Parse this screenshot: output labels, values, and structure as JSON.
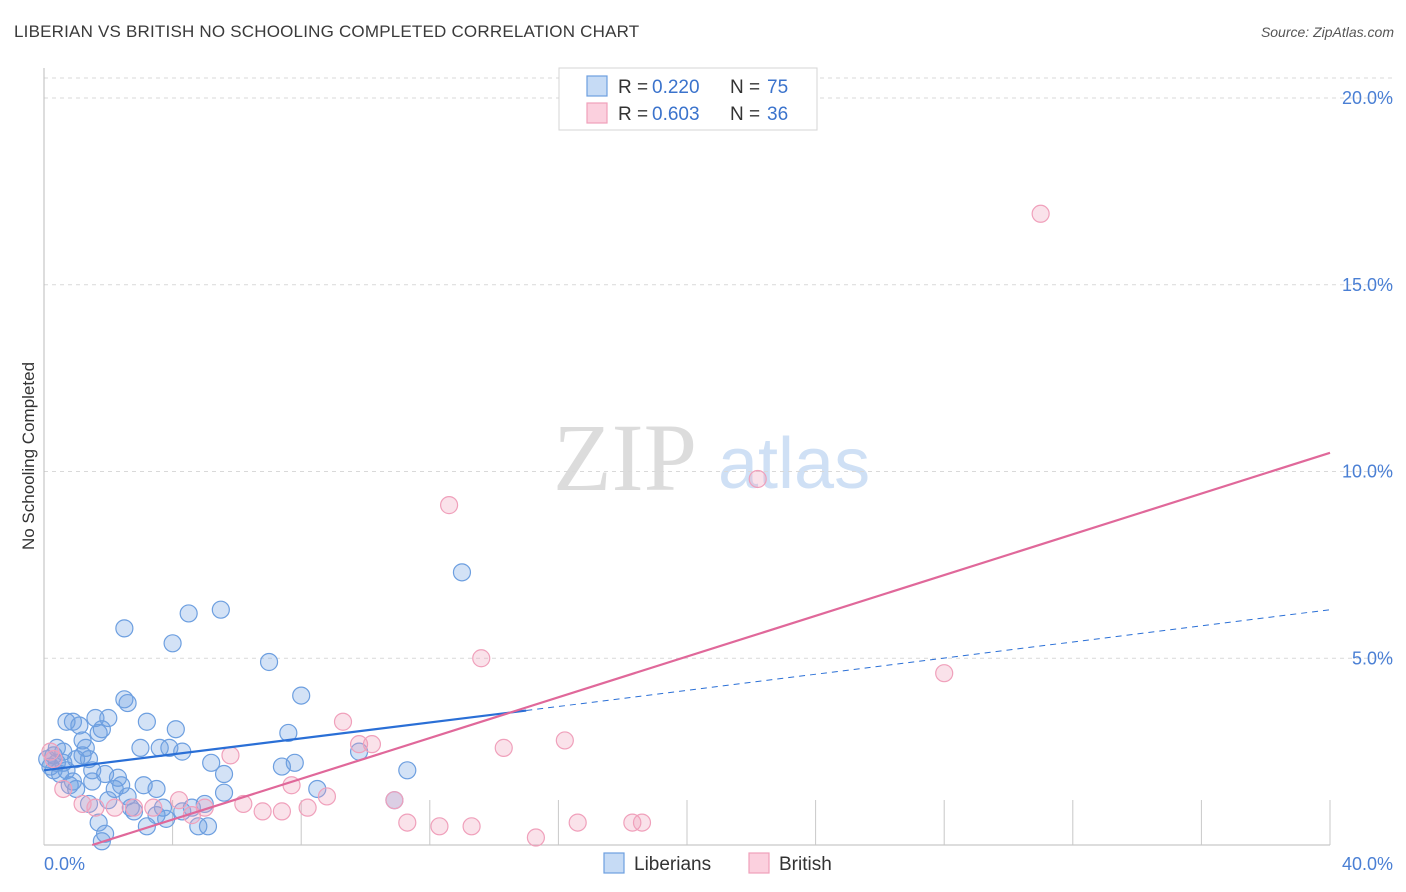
{
  "title": "LIBERIAN VS BRITISH NO SCHOOLING COMPLETED CORRELATION CHART",
  "source": "Source: ZipAtlas.com",
  "watermark": {
    "zip": "ZIP",
    "atlas": "atlas"
  },
  "colors": {
    "liberians": "#6d9fe0",
    "liberians_line": "#2a6fd6",
    "british": "#f0a0bb",
    "british_line": "#e0689a",
    "grid": "#d9d9d9",
    "tick_text": "#4a7fd4"
  },
  "legend": {
    "rows": [
      {
        "r_label": "R = ",
        "r_value": "0.220",
        "n_label": "N = ",
        "n_value": "75"
      },
      {
        "r_label": "R = ",
        "r_value": "0.603",
        "n_label": "N = ",
        "n_value": "36"
      }
    ]
  },
  "bottom_legend": [
    "Liberians",
    "British"
  ],
  "chart_data": {
    "type": "scatter",
    "title": "LIBERIAN VS BRITISH NO SCHOOLING COMPLETED CORRELATION CHART",
    "xlabel": "",
    "ylabel": "No Schooling Completed",
    "xlim": [
      0,
      40
    ],
    "ylim": [
      0,
      20
    ],
    "x_tick_labels": [
      "0.0%",
      "40.0%"
    ],
    "y_ticks": [
      5,
      10,
      15,
      20
    ],
    "y_tick_labels": [
      "5.0%",
      "10.0%",
      "15.0%",
      "20.0%"
    ],
    "grid": true,
    "legend_position": "top-center",
    "series": [
      {
        "name": "Liberians",
        "r": 0.22,
        "n": 75,
        "trend": {
          "x0": 0,
          "y0": 2.0,
          "x1": 15,
          "y1": 3.6,
          "dashed_to_x": 40,
          "dashed_to_y": 6.3
        },
        "points": [
          [
            0.1,
            2.3
          ],
          [
            0.2,
            2.1
          ],
          [
            0.3,
            2.4
          ],
          [
            0.4,
            2.2
          ],
          [
            0.5,
            1.9
          ],
          [
            0.6,
            2.5
          ],
          [
            0.7,
            2.0
          ],
          [
            0.8,
            1.6
          ],
          [
            0.9,
            1.7
          ],
          [
            1.0,
            2.3
          ],
          [
            0.7,
            3.3
          ],
          [
            0.9,
            3.3
          ],
          [
            1.1,
            3.2
          ],
          [
            1.2,
            2.4
          ],
          [
            1.3,
            2.6
          ],
          [
            1.4,
            2.3
          ],
          [
            1.5,
            1.7
          ],
          [
            1.4,
            1.1
          ],
          [
            1.5,
            2.0
          ],
          [
            1.6,
            3.4
          ],
          [
            1.7,
            3.0
          ],
          [
            1.8,
            3.1
          ],
          [
            1.9,
            1.9
          ],
          [
            1.7,
            0.6
          ],
          [
            1.9,
            0.3
          ],
          [
            1.8,
            0.1
          ],
          [
            2.0,
            3.4
          ],
          [
            2.2,
            1.5
          ],
          [
            2.3,
            1.8
          ],
          [
            2.4,
            1.6
          ],
          [
            2.5,
            3.9
          ],
          [
            2.6,
            3.8
          ],
          [
            2.7,
            1.0
          ],
          [
            2.8,
            0.9
          ],
          [
            3.0,
            2.6
          ],
          [
            3.1,
            1.6
          ],
          [
            3.2,
            0.5
          ],
          [
            3.2,
            3.3
          ],
          [
            2.5,
            5.8
          ],
          [
            3.5,
            1.5
          ],
          [
            3.6,
            2.6
          ],
          [
            3.7,
            1.0
          ],
          [
            3.8,
            0.7
          ],
          [
            3.9,
            2.6
          ],
          [
            4.0,
            5.4
          ],
          [
            4.1,
            3.1
          ],
          [
            4.3,
            2.5
          ],
          [
            4.5,
            6.2
          ],
          [
            4.6,
            1.0
          ],
          [
            4.8,
            0.5
          ],
          [
            5.1,
            0.5
          ],
          [
            5.2,
            2.2
          ],
          [
            5.5,
            6.3
          ],
          [
            5.6,
            1.9
          ],
          [
            5.6,
            1.4
          ],
          [
            7.0,
            4.9
          ],
          [
            7.4,
            2.1
          ],
          [
            7.6,
            3.0
          ],
          [
            7.8,
            2.2
          ],
          [
            8.0,
            4.0
          ],
          [
            8.5,
            1.5
          ],
          [
            9.8,
            2.5
          ],
          [
            10.9,
            1.2
          ],
          [
            11.3,
            2.0
          ],
          [
            13.0,
            7.3
          ],
          [
            0.3,
            2.0
          ],
          [
            0.6,
            2.2
          ],
          [
            1.0,
            1.5
          ],
          [
            2.0,
            1.2
          ],
          [
            3.5,
            0.8
          ],
          [
            4.3,
            0.9
          ],
          [
            5.0,
            1.1
          ],
          [
            0.4,
            2.6
          ],
          [
            1.2,
            2.8
          ],
          [
            2.6,
            1.3
          ]
        ]
      },
      {
        "name": "British",
        "r": 0.603,
        "n": 36,
        "trend": {
          "x0": 1.5,
          "y0": 0.0,
          "x1": 40,
          "y1": 10.5
        },
        "points": [
          [
            0.3,
            2.3
          ],
          [
            0.6,
            1.5
          ],
          [
            1.2,
            1.1
          ],
          [
            1.6,
            1.0
          ],
          [
            2.2,
            1.0
          ],
          [
            2.8,
            1.0
          ],
          [
            3.4,
            1.0
          ],
          [
            4.2,
            1.2
          ],
          [
            4.6,
            0.8
          ],
          [
            5.0,
            1.0
          ],
          [
            5.8,
            2.4
          ],
          [
            6.2,
            1.1
          ],
          [
            6.8,
            0.9
          ],
          [
            7.4,
            0.9
          ],
          [
            7.7,
            1.6
          ],
          [
            8.2,
            1.0
          ],
          [
            8.8,
            1.3
          ],
          [
            9.3,
            3.3
          ],
          [
            9.8,
            2.7
          ],
          [
            10.2,
            2.7
          ],
          [
            10.9,
            1.2
          ],
          [
            11.3,
            0.6
          ],
          [
            12.3,
            0.5
          ],
          [
            12.6,
            9.1
          ],
          [
            13.3,
            0.5
          ],
          [
            13.6,
            5.0
          ],
          [
            14.3,
            2.6
          ],
          [
            15.3,
            0.2
          ],
          [
            16.2,
            2.8
          ],
          [
            16.6,
            0.6
          ],
          [
            18.3,
            0.6
          ],
          [
            18.6,
            0.6
          ],
          [
            22.2,
            9.8
          ],
          [
            28.0,
            4.6
          ],
          [
            31.0,
            16.9
          ],
          [
            0.2,
            2.5
          ]
        ]
      }
    ]
  }
}
